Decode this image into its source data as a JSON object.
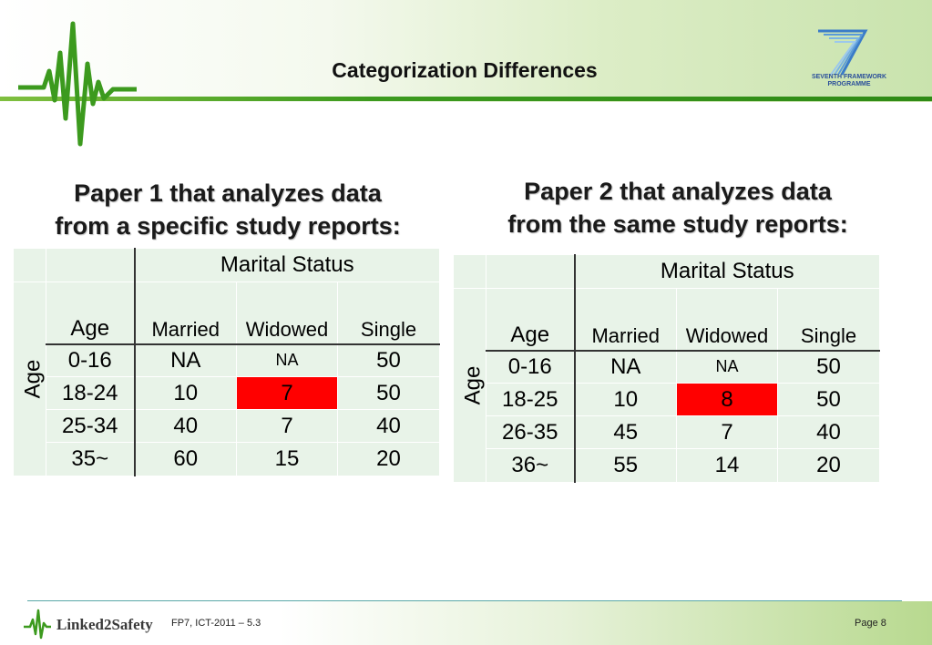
{
  "header": {
    "title": "Categorization Differences",
    "fp7_logo_text": [
      "SEVENTH FRAMEWORK",
      "PROGRAMME"
    ]
  },
  "panels": [
    {
      "heading": [
        "Paper 1 that analyzes data",
        "from a specific study reports:"
      ],
      "table": {
        "group_header": "Marital Status",
        "side_label": "Age",
        "age_header": "Age",
        "columns": [
          "Married",
          "Widowed",
          "Single"
        ],
        "rows": [
          {
            "age": "0-16",
            "cells": [
              "NA",
              "NA",
              "50"
            ]
          },
          {
            "age": "18-24",
            "cells": [
              "10",
              "7",
              "50"
            ]
          },
          {
            "age": "25-34",
            "cells": [
              "40",
              "7",
              "40"
            ]
          },
          {
            "age": "35~",
            "cells": [
              "60",
              "15",
              "20"
            ]
          }
        ],
        "highlight": {
          "row": 1,
          "col": 1,
          "color": "#ff0000"
        }
      }
    },
    {
      "heading": [
        "Paper 2 that analyzes data",
        "from the same study reports:"
      ],
      "table": {
        "group_header": "Marital Status",
        "side_label": "Age",
        "age_header": "Age",
        "columns": [
          "Married",
          "Widowed",
          "Single"
        ],
        "rows": [
          {
            "age": "0-16",
            "cells": [
              "NA",
              "NA",
              "50"
            ]
          },
          {
            "age": "18-25",
            "cells": [
              "10",
              "8",
              "50"
            ]
          },
          {
            "age": "26-35",
            "cells": [
              "45",
              "7",
              "40"
            ]
          },
          {
            "age": "36~",
            "cells": [
              "55",
              "14",
              "20"
            ]
          }
        ],
        "highlight": {
          "row": 1,
          "col": 1,
          "color": "#ff0000"
        }
      }
    }
  ],
  "footer": {
    "brand": "Linked2Safety",
    "program": "FP7, ICT-2011 – 5.3",
    "page": "Page 8"
  },
  "colors": {
    "accent_green": "#3c9a1e",
    "table_fill": "#e8f3e8",
    "highlight": "#ff0000",
    "fp7_blue": "#2a4f9a"
  }
}
